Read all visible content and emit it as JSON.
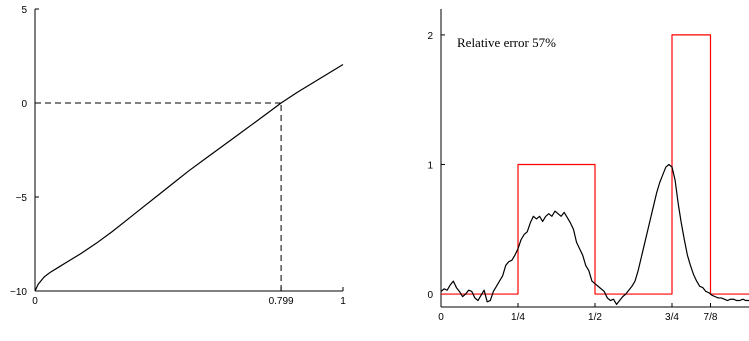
{
  "chart_data": [
    {
      "type": "line",
      "title": "",
      "xlabel": "",
      "ylabel": "",
      "xlim": [
        0,
        1
      ],
      "ylim": [
        -10,
        5
      ],
      "x_ticks": [
        {
          "value": 0,
          "label": "0"
        },
        {
          "value": 0.799,
          "label": "0.799"
        },
        {
          "value": 1,
          "label": "1"
        }
      ],
      "y_ticks": [
        {
          "value": 5,
          "label": "5"
        },
        {
          "value": 0,
          "label": "0"
        },
        {
          "value": -5,
          "label": "−5"
        },
        {
          "value": -10,
          "label": "−10"
        }
      ],
      "grid": false,
      "series": [
        {
          "color": "#000000",
          "style": "solid",
          "x": [
            0,
            0.01,
            0.03,
            0.05,
            0.08,
            0.1,
            0.15,
            0.2,
            0.25,
            0.3,
            0.35,
            0.4,
            0.45,
            0.5,
            0.55,
            0.6,
            0.65,
            0.7,
            0.75,
            0.799,
            0.85,
            0.9,
            0.95,
            1.0
          ],
          "y": [
            -10,
            -9.65,
            -9.25,
            -9.0,
            -8.7,
            -8.5,
            -8.0,
            -7.45,
            -6.85,
            -6.2,
            -5.55,
            -4.9,
            -4.25,
            -3.6,
            -3.0,
            -2.4,
            -1.8,
            -1.2,
            -0.6,
            0,
            0.55,
            1.05,
            1.55,
            2.05
          ]
        }
      ],
      "reference_lines": [
        {
          "orientation": "horizontal",
          "y": 0,
          "x_from": 0,
          "x_to": 0.799,
          "style": "dashed",
          "color": "#000000"
        },
        {
          "orientation": "vertical",
          "x": 0.799,
          "y_from": -10,
          "y_to": 0,
          "style": "dashed",
          "color": "#000000"
        }
      ]
    },
    {
      "type": "line",
      "title": "",
      "xlabel": "",
      "ylabel": "",
      "xlim": [
        0,
        1
      ],
      "ylim": [
        -0.1,
        2.2
      ],
      "x_ticks": [
        {
          "value": 0,
          "label": "0"
        },
        {
          "value": 0.25,
          "label": "1/4"
        },
        {
          "value": 0.5,
          "label": "1/2"
        },
        {
          "value": 0.75,
          "label": "3/4"
        },
        {
          "value": 0.875,
          "label": "7/8"
        }
      ],
      "y_ticks": [
        {
          "value": 0,
          "label": "0"
        },
        {
          "value": 1,
          "label": "1"
        },
        {
          "value": 2,
          "label": "2"
        }
      ],
      "grid": false,
      "annotation": "Relative error 57%",
      "series": [
        {
          "color": "#ff0000",
          "style": "solid",
          "step": true,
          "x": [
            0,
            0.25,
            0.25,
            0.5,
            0.5,
            0.75,
            0.75,
            0.875,
            0.875,
            1.0
          ],
          "y": [
            0,
            0,
            1,
            1,
            0,
            0,
            2,
            2,
            0,
            0
          ]
        },
        {
          "color": "#000000",
          "style": "solid",
          "x": [
            0,
            0.01,
            0.02,
            0.03,
            0.04,
            0.05,
            0.06,
            0.07,
            0.08,
            0.09,
            0.1,
            0.11,
            0.12,
            0.13,
            0.14,
            0.15,
            0.16,
            0.17,
            0.18,
            0.19,
            0.2,
            0.21,
            0.22,
            0.23,
            0.24,
            0.25,
            0.26,
            0.27,
            0.28,
            0.29,
            0.3,
            0.31,
            0.32,
            0.33,
            0.34,
            0.35,
            0.36,
            0.37,
            0.38,
            0.39,
            0.4,
            0.41,
            0.42,
            0.43,
            0.44,
            0.45,
            0.46,
            0.47,
            0.48,
            0.49,
            0.5,
            0.51,
            0.52,
            0.53,
            0.54,
            0.55,
            0.56,
            0.57,
            0.58,
            0.59,
            0.6,
            0.61,
            0.62,
            0.63,
            0.64,
            0.65,
            0.66,
            0.67,
            0.68,
            0.69,
            0.7,
            0.71,
            0.72,
            0.73,
            0.74,
            0.75,
            0.76,
            0.77,
            0.78,
            0.79,
            0.8,
            0.81,
            0.82,
            0.83,
            0.84,
            0.85,
            0.86,
            0.87,
            0.88,
            0.89,
            0.9,
            0.91,
            0.92,
            0.93,
            0.94,
            0.95,
            0.96,
            0.97,
            0.98,
            0.99,
            1.0
          ],
          "y": [
            0.02,
            0.04,
            0.03,
            0.07,
            0.1,
            0.05,
            0.02,
            -0.02,
            0.0,
            0.03,
            0.02,
            -0.03,
            -0.05,
            -0.01,
            0.03,
            -0.06,
            -0.05,
            0.02,
            0.06,
            0.1,
            0.14,
            0.22,
            0.25,
            0.26,
            0.3,
            0.35,
            0.42,
            0.46,
            0.48,
            0.55,
            0.6,
            0.58,
            0.6,
            0.56,
            0.6,
            0.62,
            0.6,
            0.64,
            0.62,
            0.6,
            0.63,
            0.59,
            0.55,
            0.5,
            0.4,
            0.35,
            0.3,
            0.22,
            0.18,
            0.1,
            0.08,
            0.06,
            0.04,
            0.02,
            -0.03,
            -0.05,
            -0.04,
            -0.08,
            -0.05,
            -0.02,
            0.0,
            0.03,
            0.06,
            0.1,
            0.18,
            0.28,
            0.38,
            0.48,
            0.58,
            0.68,
            0.78,
            0.86,
            0.92,
            0.98,
            1.0,
            0.98,
            0.88,
            0.7,
            0.55,
            0.42,
            0.3,
            0.22,
            0.15,
            0.1,
            0.06,
            0.05,
            0.02,
            0.01,
            -0.01,
            -0.02,
            -0.03,
            -0.03,
            -0.04,
            -0.05,
            -0.04,
            -0.04,
            -0.05,
            -0.05,
            -0.04,
            -0.05,
            -0.05
          ]
        }
      ]
    }
  ]
}
